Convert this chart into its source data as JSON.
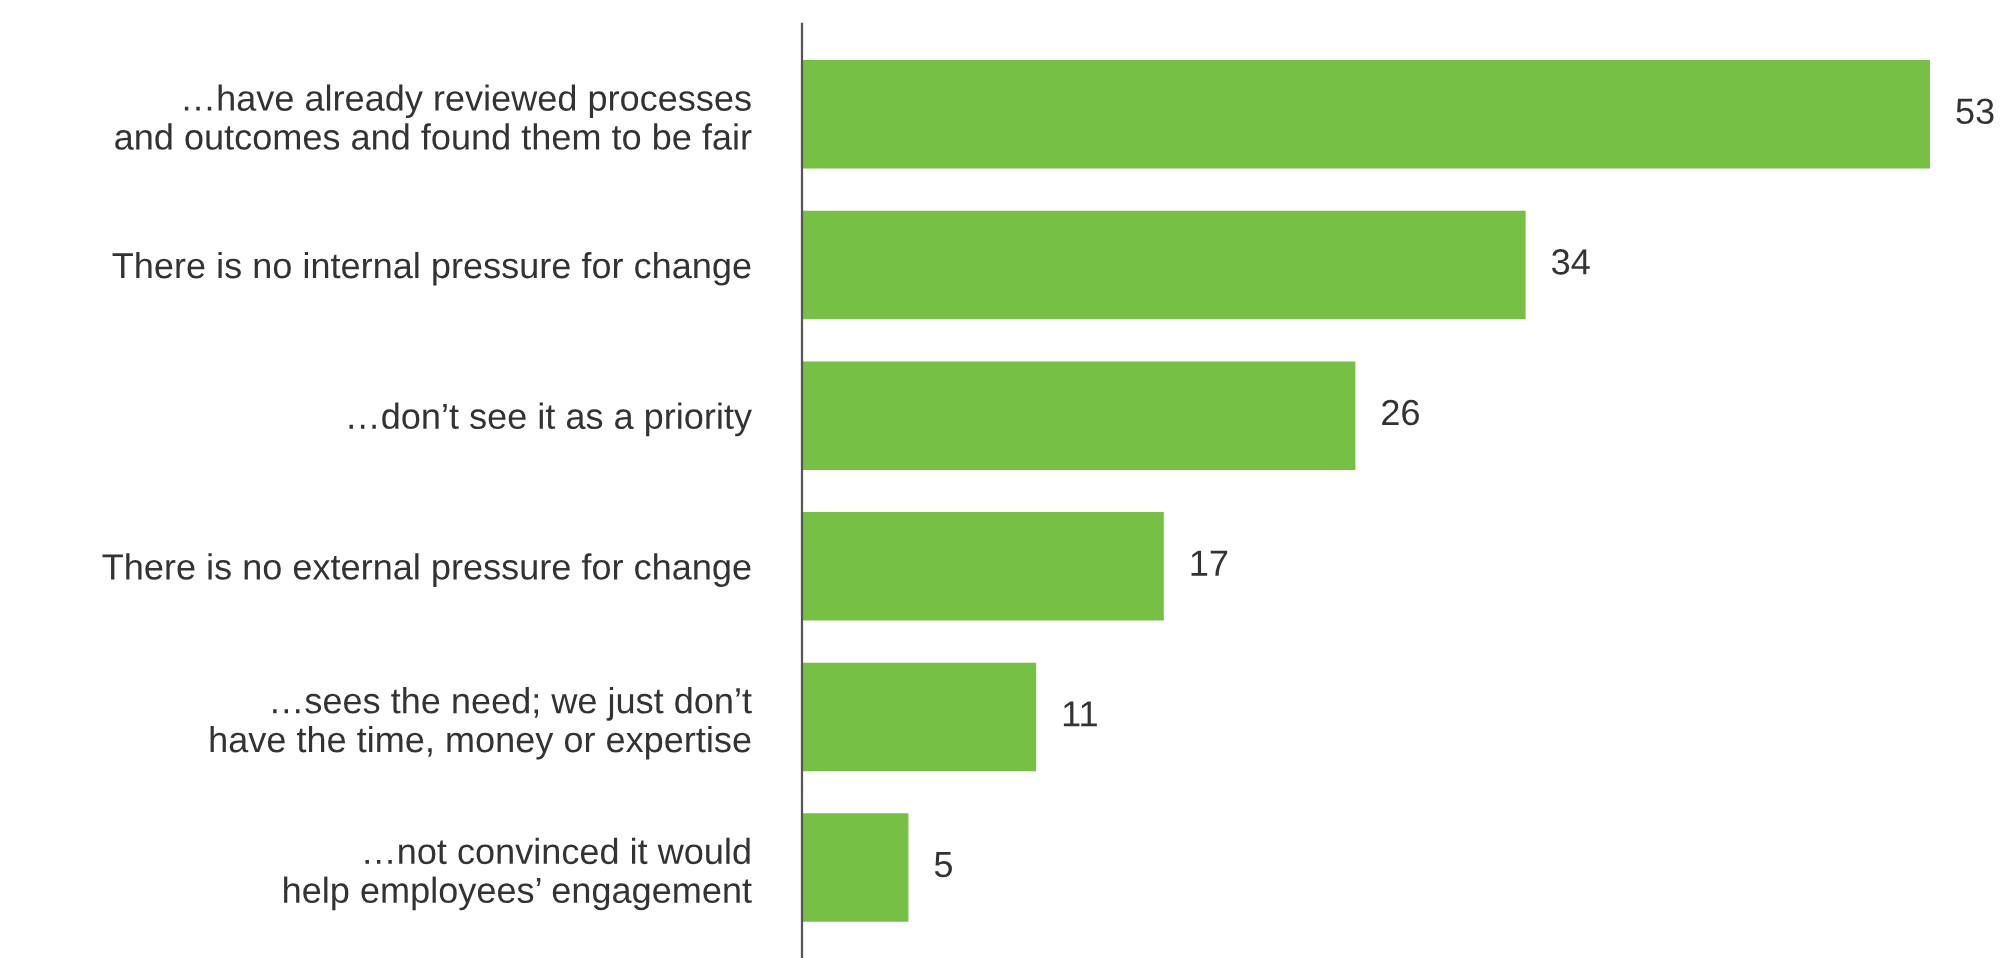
{
  "chart_data": {
    "type": "bar",
    "orientation": "horizontal",
    "categories": [
      "…have already reviewed processes\nand outcomes and found them to be fair",
      "There is no internal pressure for change",
      "…don’t see it as a priority",
      "There is no external pressure for change",
      "…sees the need; we just don’t\nhave the time, money or expertise",
      "…not convinced it would\nhelp employees’ engagement"
    ],
    "values": [
      53,
      34,
      26,
      17,
      11,
      5
    ],
    "color": "#76c043",
    "data_labels": true,
    "grid": false,
    "legend": false
  }
}
